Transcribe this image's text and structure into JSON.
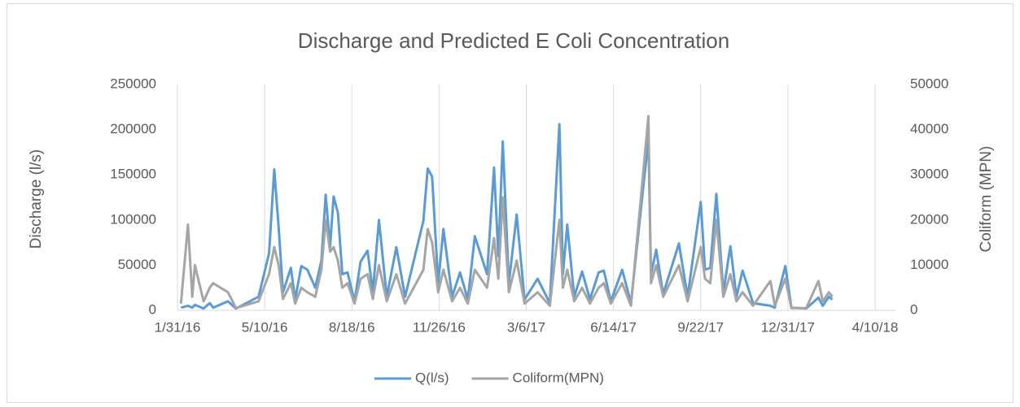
{
  "chart_data": {
    "type": "line",
    "title": "Discharge and Predicted E Coli Concentration",
    "y_label": "Discharge (l/s)",
    "y2_label": "Coliform (MPN)",
    "x": [
      "2/4/16",
      "2/12/16",
      "2/17/16",
      "2/20/16",
      "3/1/16",
      "3/8/16",
      "3/12/16",
      "3/29/16",
      "4/7/16",
      "5/3/16",
      "5/15/16",
      "5/21/16",
      "5/26/16",
      "5/31/16",
      "6/9/16",
      "6/14/16",
      "6/21/16",
      "6/28/16",
      "7/7/16",
      "7/14/16",
      "7/19/16",
      "7/24/16",
      "7/28/16",
      "8/2/16",
      "8/7/16",
      "8/13/16",
      "8/21/16",
      "8/28/16",
      "9/5/16",
      "9/11/16",
      "9/18/16",
      "9/27/16",
      "10/8/16",
      "10/18/16",
      "11/8/16",
      "11/13/16",
      "11/18/16",
      "11/25/16",
      "12/1/16",
      "12/11/16",
      "12/20/16",
      "12/29/16",
      "1/6/17",
      "1/20/17",
      "1/28/17",
      "2/2/17",
      "2/7/17",
      "2/14/17",
      "2/23/17",
      "3/4/17",
      "3/19/17",
      "4/2/17",
      "4/13/17",
      "4/17/17",
      "4/22/17",
      "4/30/17",
      "5/9/17",
      "5/18/17",
      "5/28/17",
      "6/3/17",
      "6/11/17",
      "6/24/17",
      "7/4/17",
      "7/24/17",
      "7/27/17",
      "8/2/17",
      "8/10/17",
      "8/28/17",
      "9/7/17",
      "9/22/17",
      "9/27/17",
      "10/3/17",
      "10/10/17",
      "10/18/17",
      "10/26/17",
      "11/2/17",
      "11/9/17",
      "11/21/17",
      "12/11/17",
      "12/16/17",
      "12/28/17",
      "1/4/18",
      "1/21/18",
      "2/4/18",
      "2/9/18",
      "2/16/18",
      "2/20/18"
    ],
    "series": [
      {
        "name": "Q(l/s)",
        "color": "#5b9bd5",
        "axis": "y",
        "values": [
          3000,
          5000,
          3000,
          6000,
          2000,
          8000,
          3000,
          10000,
          2000,
          15000,
          63000,
          156000,
          92000,
          20000,
          47000,
          12000,
          49000,
          45000,
          25000,
          55000,
          128000,
          70000,
          126000,
          108000,
          40000,
          42000,
          10000,
          54000,
          66000,
          20000,
          100000,
          15000,
          70000,
          15000,
          99000,
          157000,
          148000,
          30000,
          90000,
          15000,
          42000,
          12000,
          82000,
          40000,
          158000,
          60000,
          187000,
          30000,
          106000,
          12000,
          35000,
          8000,
          206000,
          40000,
          95000,
          15000,
          43000,
          12000,
          42000,
          44000,
          10000,
          45000,
          8000,
          190000,
          40000,
          67000,
          18000,
          74000,
          15000,
          120000,
          45000,
          47000,
          129000,
          20000,
          71000,
          15000,
          44000,
          8000,
          5000,
          3000,
          49000,
          3000,
          2000,
          14000,
          5000,
          15000,
          12000
        ]
      },
      {
        "name": "Coliform(MPN)",
        "color": "#a5a5a5",
        "axis": "y2",
        "values": [
          1500,
          19000,
          3000,
          10000,
          2000,
          5000,
          6000,
          4000,
          500,
          2000,
          8000,
          14000,
          10000,
          2500,
          6000,
          1500,
          5000,
          4000,
          3000,
          9000,
          20000,
          13000,
          14000,
          11000,
          5000,
          6000,
          1500,
          7000,
          8000,
          2500,
          10000,
          2000,
          8000,
          1500,
          9000,
          18000,
          15000,
          4000,
          9000,
          2000,
          5000,
          1500,
          9000,
          5000,
          16000,
          7000,
          25000,
          4000,
          11000,
          1500,
          4000,
          1000,
          20000,
          5000,
          9000,
          2000,
          5000,
          1500,
          5000,
          6000,
          1500,
          6000,
          1000,
          43000,
          6000,
          10000,
          3000,
          10000,
          2000,
          14000,
          7000,
          6000,
          20000,
          3000,
          8000,
          2000,
          4000,
          1000,
          6500,
          1000,
          7000,
          500,
          500,
          6500,
          2000,
          4000,
          3000
        ]
      }
    ],
    "xlim": [
      "1/31/16",
      "4/10/18"
    ],
    "xticks": [
      "1/31/16",
      "5/10/16",
      "8/18/16",
      "11/26/16",
      "3/6/17",
      "6/14/17",
      "9/22/17",
      "12/31/17",
      "4/10/18"
    ],
    "ylim": [
      0,
      250000
    ],
    "yticks": [
      0,
      50000,
      100000,
      150000,
      200000,
      250000
    ],
    "y2lim": [
      0,
      50000
    ],
    "y2ticks": [
      0,
      10000,
      20000,
      30000,
      40000,
      50000
    ],
    "grid": "x",
    "legend": "bottom"
  }
}
